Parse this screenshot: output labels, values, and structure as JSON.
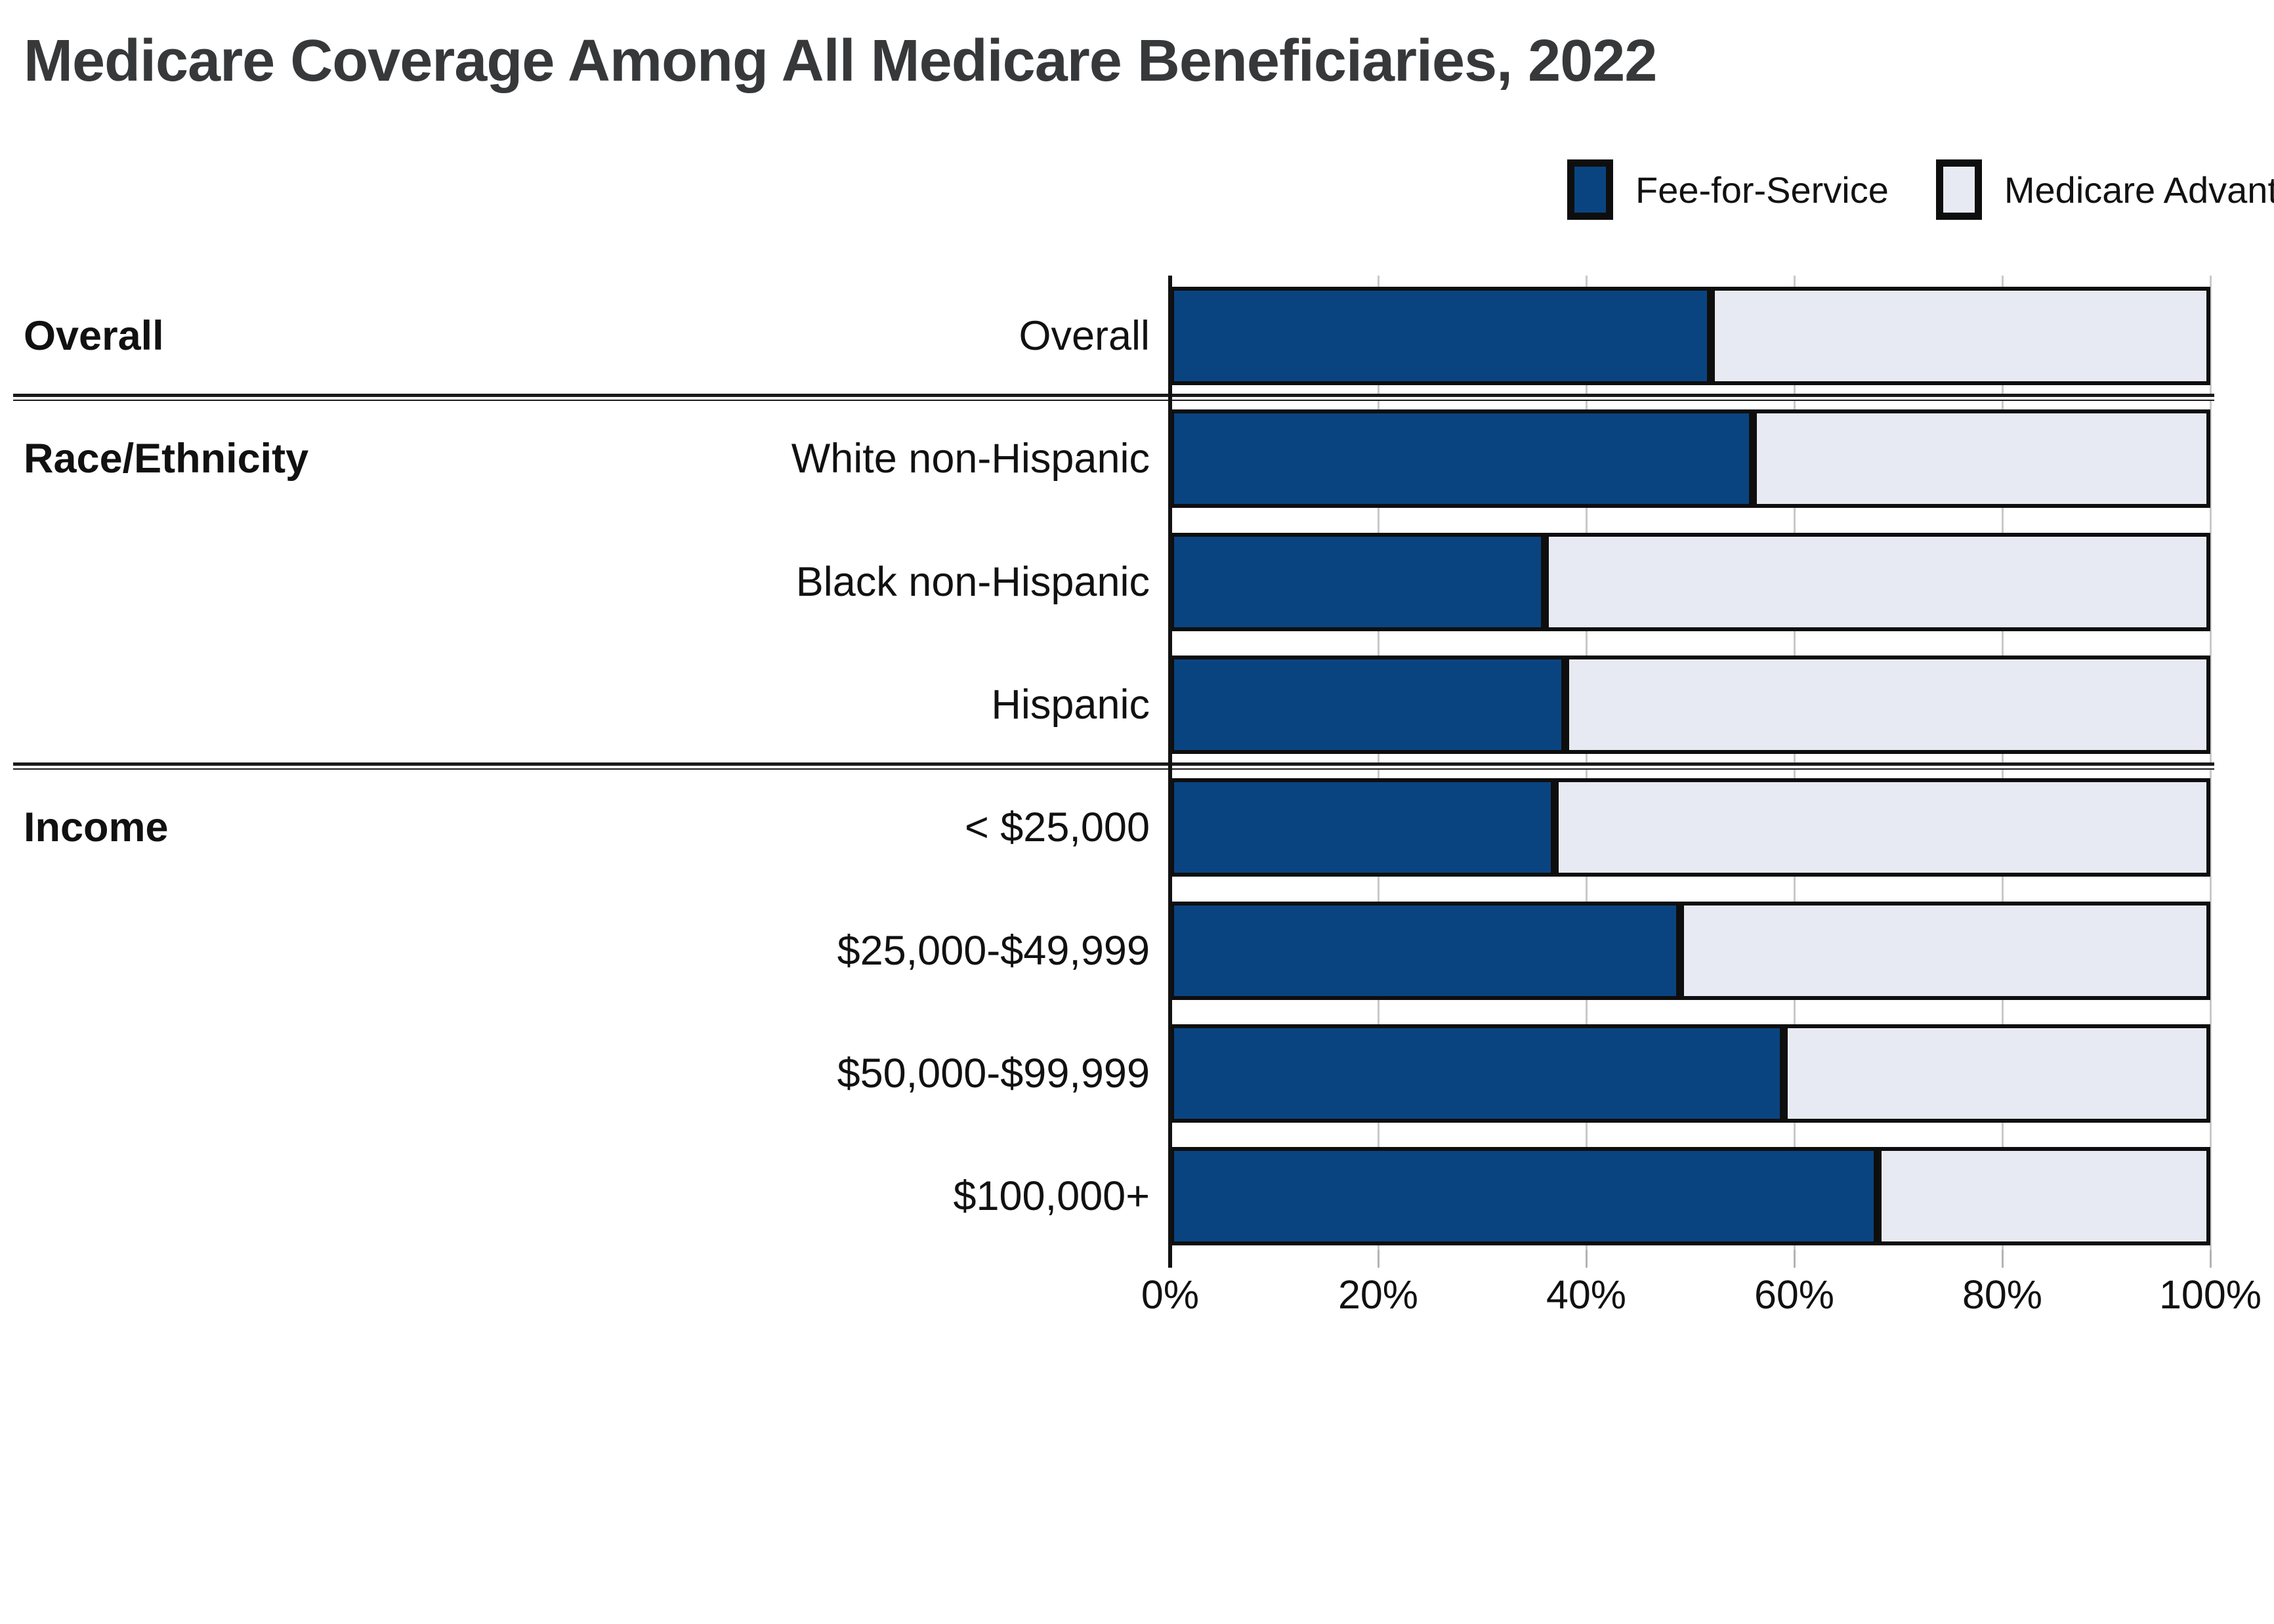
{
  "title": "Medicare Coverage Among All Medicare Beneficiaries, 2022",
  "chart_data": {
    "type": "bar",
    "orientation": "horizontal",
    "stacked": true,
    "unit": "percent of beneficiaries",
    "title": "Medicare Coverage Among All Medicare Beneficiaries, 2022",
    "categories": [
      "Overall",
      "White non-Hispanic",
      "Black non-Hispanic",
      "Hispanic",
      "< $25,000",
      "$25,000-$49,999",
      "$50,000-$99,999",
      "$100,000+"
    ],
    "groups": [
      {
        "label": "Overall",
        "rows": [
          "Overall"
        ]
      },
      {
        "label": "Race/Ethnicity",
        "rows": [
          "White non-Hispanic",
          "Black non-Hispanic",
          "Hispanic"
        ]
      },
      {
        "label": "Income",
        "rows": [
          "< $25,000",
          "$25,000-$49,999",
          "$50,000-$99,999",
          "$100,000+"
        ]
      }
    ],
    "series": [
      {
        "name": "Fee-for-Service",
        "color": "#0a4480",
        "values": [
          52,
          56,
          36,
          38,
          37,
          49,
          59,
          68
        ]
      },
      {
        "name": "Medicare Advantage",
        "color": "#e7eaf2",
        "values": [
          48,
          44,
          64,
          62,
          63,
          51,
          41,
          32
        ]
      }
    ],
    "xlabel": "",
    "ylabel": "",
    "xlim": [
      0,
      100
    ],
    "x_ticks": [
      "0%",
      "20%",
      "40%",
      "60%",
      "80%",
      "100%"
    ],
    "grid": "vertical",
    "legend_position": "top-right"
  },
  "colors": {
    "fee_for_service": "#0a4480",
    "medicare_advantage": "#e7eaf2",
    "segment_border": "#0e0e0e",
    "title_text": "#37383a",
    "label_text": "#111111",
    "gridline": "#c9c9c9",
    "tick_minor": "#b3b3b3",
    "divider": "#1a1a1a",
    "background": "#ffffff"
  }
}
